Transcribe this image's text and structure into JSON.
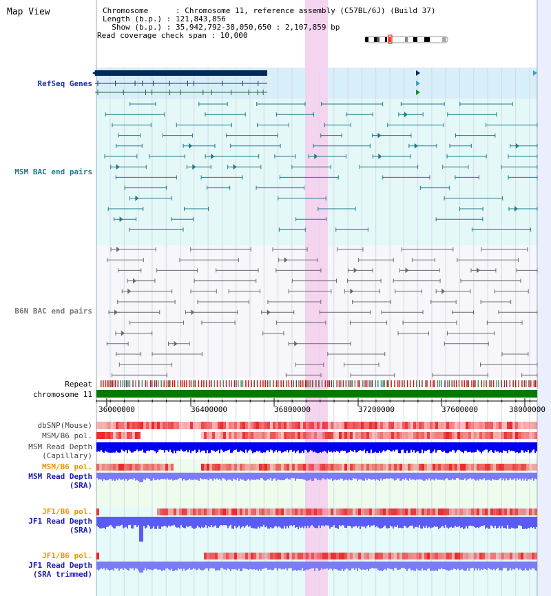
{
  "header": {
    "title": "Map View",
    "chromosome_line": "Chromosome      : Chromosome 11, reference assembly (C57BL/6J) (Build 37)",
    "length_line": "Length (b.p.) : 121,843,856",
    "show_line": "  Show (b.p.) : 35,942,792-38,050,650 : 2,107,859 bp",
    "coverage_line": "Read coverage check span : 10,000"
  },
  "tracks": {
    "refseq": "RefSeq Genes",
    "msm_bac": "MSM BAC end pairs",
    "b6n_bac": "B6N BAC end pairs",
    "repeat": "Repeat",
    "chromosome": "chromosome 11",
    "dbsnp": "dbSNP(Mouse)",
    "msm_b6_pol": "MSM/B6 pol.",
    "msm_depth_cap_1": "MSM Read Depth",
    "msm_depth_cap_2": "(Capillary)",
    "msm_b6_pol_sra": "MSM/B6 pol.",
    "msm_depth_sra_1": "MSM Read Depth",
    "msm_depth_sra_2": "(SRA)",
    "jf1_b6_pol": "JF1/B6 pol.",
    "jf1_depth_1": "JF1 Read Depth",
    "jf1_depth_2": "(SRA)",
    "jf1_b6_pol_trim": "JF1/B6 pol.",
    "jf1_depth_trim_1": "JF1 Read Depth",
    "jf1_depth_trim_2": "(SRA trimmed)"
  },
  "axis": {
    "ticks": [
      "36000000",
      "36400000",
      "36800000",
      "37200000",
      "37600000",
      "38000000"
    ],
    "range": [
      35942792,
      38050650
    ]
  },
  "colors": {
    "highlight": "#f5d4f0",
    "refseq_bg": "#d8eef8",
    "bac_bg": "#e4f8f8",
    "b6n_bg": "#f6f6fb",
    "chrom_bar": "#007a00",
    "msm_depth": "#0000ee",
    "sra_depth": "#7b7bf5",
    "pol_red": "#e81a1a"
  }
}
